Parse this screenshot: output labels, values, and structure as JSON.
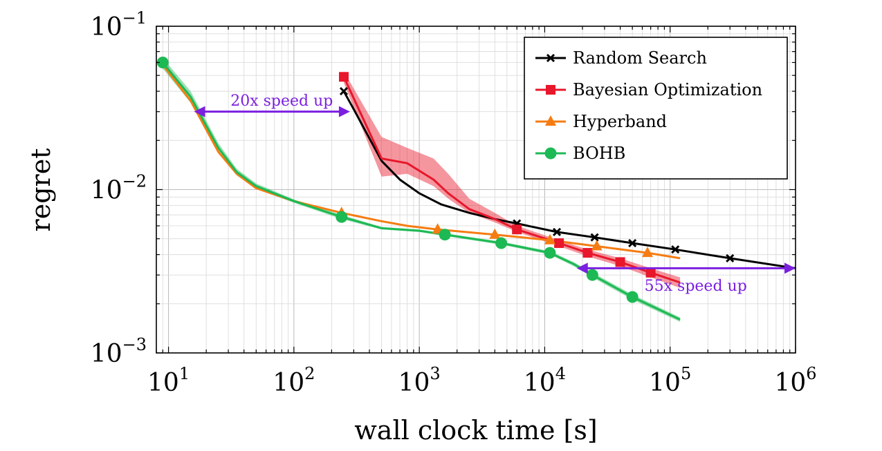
{
  "chart_data": {
    "type": "line",
    "xlabel": "wall clock time [s]",
    "ylabel": "regret",
    "x_scale": "log",
    "y_scale": "log",
    "xlim": [
      8,
      1000000
    ],
    "ylim": [
      0.001,
      0.1
    ],
    "grid": true,
    "legend_position": "top-right",
    "x_ticks": [
      {
        "value": 10,
        "base": "10",
        "exp": "1"
      },
      {
        "value": 100,
        "base": "10",
        "exp": "2"
      },
      {
        "value": 1000,
        "base": "10",
        "exp": "3"
      },
      {
        "value": 10000,
        "base": "10",
        "exp": "4"
      },
      {
        "value": 100000,
        "base": "10",
        "exp": "5"
      },
      {
        "value": 1000000,
        "base": "10",
        "exp": "6"
      }
    ],
    "y_ticks": [
      {
        "value": 0.1,
        "base": "10",
        "exp": "−1"
      },
      {
        "value": 0.01,
        "base": "10",
        "exp": "−2"
      },
      {
        "value": 0.001,
        "base": "10",
        "exp": "−3"
      }
    ],
    "series": [
      {
        "name": "Random Search",
        "color": "#000000",
        "marker": "x",
        "points": [
          [
            250,
            0.04
          ],
          [
            300,
            0.031
          ],
          [
            500,
            0.015
          ],
          [
            700,
            0.0115
          ],
          [
            1000,
            0.0095
          ],
          [
            1500,
            0.0081
          ],
          [
            2500,
            0.0072
          ],
          [
            4000,
            0.0066
          ],
          [
            6000,
            0.0062
          ],
          [
            12500,
            0.0055
          ],
          [
            25000,
            0.0051
          ],
          [
            50000,
            0.0047
          ],
          [
            110000,
            0.0043
          ],
          [
            300000,
            0.0038
          ],
          [
            1000000,
            0.0033
          ]
        ],
        "markers_at": [
          [
            250,
            0.04
          ],
          [
            6000,
            0.0062
          ],
          [
            12500,
            0.0055
          ],
          [
            25000,
            0.0051
          ],
          [
            50000,
            0.0047
          ],
          [
            110000,
            0.0043
          ],
          [
            300000,
            0.0038
          ]
        ]
      },
      {
        "name": "Bayesian Optimization",
        "color": "#e8172b",
        "marker": "square",
        "points": [
          [
            250,
            0.049
          ],
          [
            500,
            0.0155
          ],
          [
            800,
            0.0145
          ],
          [
            1300,
            0.0115
          ],
          [
            1700,
            0.0095
          ],
          [
            2500,
            0.0076
          ],
          [
            4000,
            0.0066
          ],
          [
            6000,
            0.0057
          ],
          [
            13000,
            0.0047
          ],
          [
            22000,
            0.0041
          ],
          [
            40000,
            0.0036
          ],
          [
            70000,
            0.0031
          ],
          [
            120000,
            0.0027
          ]
        ],
        "band": [
          [
            250,
            0.045,
            0.053
          ],
          [
            500,
            0.012,
            0.021
          ],
          [
            800,
            0.0125,
            0.018
          ],
          [
            1300,
            0.0105,
            0.0155
          ],
          [
            1700,
            0.0088,
            0.0125
          ],
          [
            2500,
            0.0072,
            0.0088
          ],
          [
            4000,
            0.0063,
            0.0072
          ],
          [
            6000,
            0.0055,
            0.006
          ],
          [
            13000,
            0.0045,
            0.0049
          ],
          [
            22000,
            0.0039,
            0.0043
          ],
          [
            40000,
            0.0034,
            0.0038
          ],
          [
            70000,
            0.0029,
            0.0033
          ],
          [
            120000,
            0.0025,
            0.0029
          ]
        ],
        "markers_at": [
          [
            250,
            0.049
          ],
          [
            6000,
            0.0057
          ],
          [
            13000,
            0.0047
          ],
          [
            22000,
            0.0041
          ],
          [
            40000,
            0.0036
          ],
          [
            70000,
            0.0031
          ]
        ]
      },
      {
        "name": "Hyperband",
        "color": "#f57c12",
        "marker": "triangle",
        "points": [
          [
            9,
            0.058
          ],
          [
            15,
            0.035
          ],
          [
            25,
            0.017
          ],
          [
            35,
            0.0125
          ],
          [
            50,
            0.0102
          ],
          [
            100,
            0.0085
          ],
          [
            240,
            0.0072
          ],
          [
            500,
            0.0064
          ],
          [
            800,
            0.006
          ],
          [
            1400,
            0.0057
          ],
          [
            4000,
            0.0053
          ],
          [
            11000,
            0.0049
          ],
          [
            26000,
            0.0045
          ],
          [
            66000,
            0.0041
          ],
          [
            120000,
            0.0038
          ]
        ],
        "markers_at": [
          [
            240,
            0.0072
          ],
          [
            1400,
            0.0057
          ],
          [
            4000,
            0.0053
          ],
          [
            11000,
            0.0049
          ],
          [
            26000,
            0.0045
          ],
          [
            66000,
            0.0041
          ]
        ]
      },
      {
        "name": "BOHB",
        "color": "#1db954",
        "marker": "circle",
        "points": [
          [
            9,
            0.06
          ],
          [
            15,
            0.037
          ],
          [
            25,
            0.018
          ],
          [
            35,
            0.0128
          ],
          [
            50,
            0.0105
          ],
          [
            100,
            0.0085
          ],
          [
            240,
            0.0068
          ],
          [
            500,
            0.0058
          ],
          [
            1000,
            0.0056
          ],
          [
            1600,
            0.0053
          ],
          [
            4500,
            0.0047
          ],
          [
            11000,
            0.0041
          ],
          [
            17000,
            0.0035
          ],
          [
            24000,
            0.003
          ],
          [
            50000,
            0.0022
          ],
          [
            120000,
            0.0016
          ]
        ],
        "band": [
          [
            9,
            0.055,
            0.064
          ],
          [
            15,
            0.034,
            0.04
          ],
          [
            25,
            0.0168,
            0.0192
          ],
          [
            35,
            0.0122,
            0.0134
          ],
          [
            50,
            0.0101,
            0.0109
          ],
          [
            100,
            0.0083,
            0.0087
          ],
          [
            240,
            0.0066,
            0.007
          ],
          [
            500,
            0.0057,
            0.0059
          ],
          [
            1000,
            0.0055,
            0.0057
          ],
          [
            1600,
            0.0052,
            0.0054
          ],
          [
            4500,
            0.0046,
            0.0048
          ],
          [
            11000,
            0.004,
            0.0042
          ],
          [
            17000,
            0.0034,
            0.0036
          ],
          [
            24000,
            0.0029,
            0.0031
          ],
          [
            50000,
            0.00212,
            0.00228
          ],
          [
            120000,
            0.00155,
            0.00165
          ]
        ],
        "markers_at": [
          [
            9,
            0.06
          ],
          [
            240,
            0.0068
          ],
          [
            1600,
            0.0053
          ],
          [
            4500,
            0.0047
          ],
          [
            11000,
            0.0041
          ],
          [
            24000,
            0.003
          ],
          [
            50000,
            0.0022
          ]
        ]
      }
    ],
    "annotations": [
      {
        "text": "20x speed up",
        "color": "#7b1fe0",
        "arrow": [
          [
            16,
            0.03
          ],
          [
            280,
            0.03
          ]
        ],
        "label_at": [
          80,
          0.0352
        ]
      },
      {
        "text": "55x speed up",
        "color": "#7b1fe0",
        "arrow": [
          [
            18000,
            0.0033
          ],
          [
            1000000,
            0.0033
          ]
        ],
        "label_at": [
          160000,
          0.0026
        ]
      }
    ]
  }
}
